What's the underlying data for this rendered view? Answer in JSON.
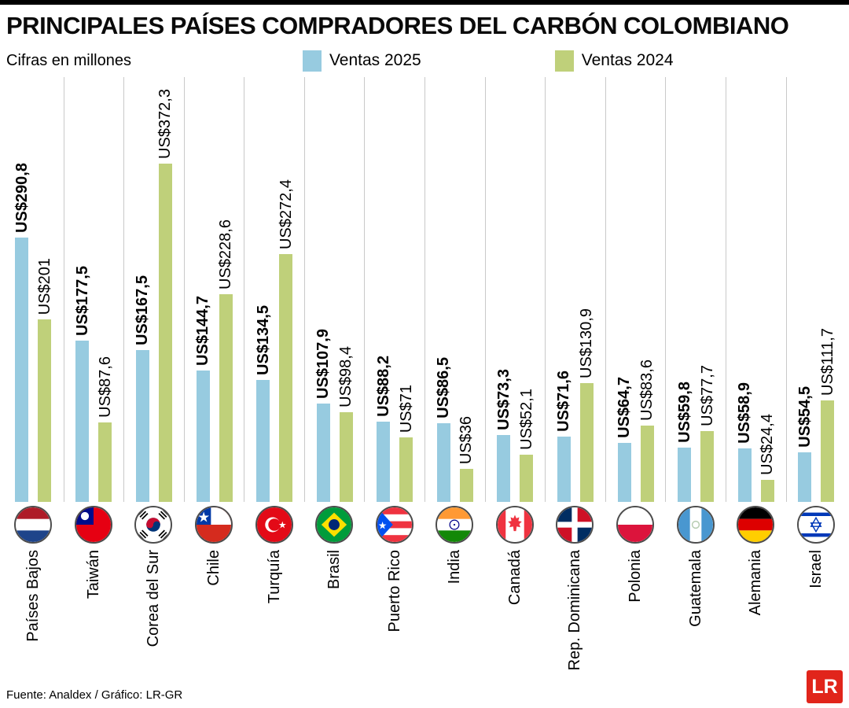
{
  "title": "PRINCIPALES PAÍSES COMPRADORES DEL CARBÓN COLOMBIANO",
  "subtitle": "Cifras en millones",
  "legend": [
    {
      "label": "Ventas 2025",
      "color": "#97cbe0"
    },
    {
      "label": "Ventas 2024",
      "color": "#bfd07a"
    }
  ],
  "footer": {
    "source": "Fuente: Analdex / Gráfico: LR-GR",
    "logo": "LR"
  },
  "chart_data": {
    "type": "bar",
    "title": "PRINCIPALES PAÍSES COMPRADORES DEL CARBÓN COLOMBIANO",
    "unit": "US$ millones",
    "ylim": [
      0,
      372.3
    ],
    "grid": "vertical-separators",
    "legend_position": "top",
    "categories": [
      "Países Bajos",
      "Taiwán",
      "Corea del Sur",
      "Chile",
      "Turquía",
      "Brasil",
      "Puerto Rico",
      "India",
      "Canadá",
      "Rep. Dominicana",
      "Polonia",
      "Guatemala",
      "Alemania",
      "Israel"
    ],
    "flags": [
      "netherlands",
      "taiwan",
      "south-korea",
      "chile",
      "turkey",
      "brazil",
      "puerto-rico",
      "india",
      "canada",
      "dominican-republic",
      "poland",
      "guatemala",
      "germany",
      "israel"
    ],
    "series": [
      {
        "name": "Ventas 2025",
        "color": "#97cbe0",
        "values": [
          290.8,
          177.5,
          167.5,
          144.7,
          134.5,
          107.9,
          88.2,
          86.5,
          73.3,
          71.6,
          64.7,
          59.8,
          58.9,
          54.5
        ],
        "labels": [
          "US$290,8",
          "US$177,5",
          "US$167,5",
          "US$144,7",
          "US$134,5",
          "US$107,9",
          "US$88,2",
          "US$86,5",
          "US$73,3",
          "US$71,6",
          "US$64,7",
          "US$59,8",
          "US$58,9",
          "US$54,5"
        ]
      },
      {
        "name": "Ventas 2024",
        "color": "#bfd07a",
        "values": [
          201,
          87.6,
          372.3,
          228.6,
          272.4,
          98.4,
          71,
          36,
          52.1,
          130.9,
          83.6,
          77.7,
          24.4,
          111.7
        ],
        "labels": [
          "US$201",
          "US$87,6",
          "US$372,3",
          "US$228,6",
          "US$272,4",
          "US$98,4",
          "US$71",
          "US$36",
          "US$52,1",
          "US$130,9",
          "US$83,6",
          "US$77,7",
          "US$24,4",
          "US$111,7"
        ]
      }
    ]
  }
}
